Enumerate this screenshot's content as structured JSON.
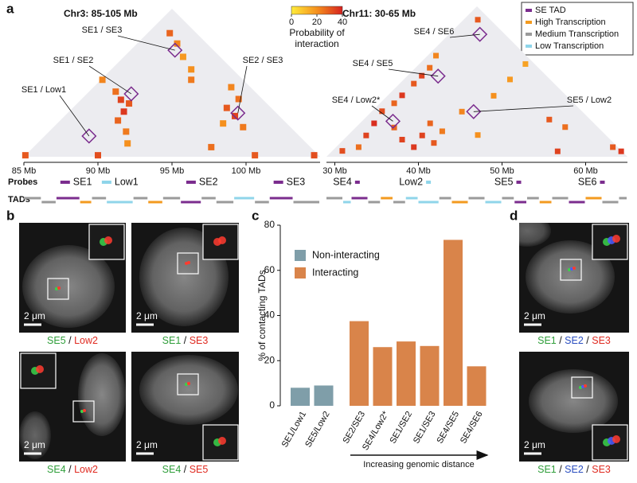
{
  "panel_labels": [
    "a",
    "b",
    "c",
    "d"
  ],
  "panel_a": {
    "colorbar": {
      "lim": [
        0,
        40
      ],
      "ticks": [
        0,
        20,
        40
      ],
      "colormap": [
        "#ffec3a",
        "#f5901e",
        "#d6221f"
      ],
      "label_lines": [
        "Probability of",
        "interaction"
      ]
    },
    "legend": [
      {
        "name": "SE TAD",
        "color": "#7b2d8e"
      },
      {
        "name": "High Transcription",
        "color": "#f39a1f"
      },
      {
        "name": "Medium Transcription",
        "color": "#9a9a9a"
      },
      {
        "name": "Low Transcription",
        "color": "#8fd5ea"
      }
    ],
    "row_labels": [
      "Probes",
      "TADs"
    ],
    "maps": [
      {
        "title": "Chr3: 85-105 Mb",
        "xlim": [
          85,
          105
        ],
        "xticks": [
          {
            "value": 85,
            "label": "85 Mb"
          },
          {
            "value": 90,
            "label": "90 Mb"
          },
          {
            "value": 95,
            "label": "95 Mb"
          },
          {
            "value": 100,
            "label": "100 Mb"
          }
        ],
        "probes": [
          {
            "name": "SE1",
            "pos": 88,
            "type": 0
          },
          {
            "name": "Low1",
            "pos": 90.8,
            "type": 3
          },
          {
            "name": "SE2",
            "pos": 96.5,
            "type": 0
          },
          {
            "name": "SE3",
            "pos": 102.4,
            "type": 0
          }
        ],
        "contacts": [
          {
            "pair": [
              0,
              3
            ],
            "label": "SE1 / SE3"
          },
          {
            "pair": [
              0,
              2
            ],
            "label": "SE1 / SE2"
          },
          {
            "pair": [
              2,
              3
            ],
            "label": "SE2 / SE3"
          },
          {
            "pair": [
              0,
              1
            ],
            "label": "SE1 / Low1"
          }
        ],
        "cells": [
          [
            85.0,
            85.2,
            30
          ],
          [
            86.5,
            103.2,
            28
          ],
          [
            87.7,
            103.0,
            22
          ],
          [
            89.0,
            102.5,
            18
          ],
          [
            90.4,
            102.2,
            20
          ],
          [
            91.1,
            101.5,
            24
          ],
          [
            85.1,
            95.5,
            22
          ],
          [
            86.8,
            95.6,
            26
          ],
          [
            87.7,
            95.4,
            34
          ],
          [
            88.5,
            95.7,
            30
          ],
          [
            88.7,
            94.8,
            36
          ],
          [
            88.9,
            93.8,
            28
          ],
          [
            90.2,
            93.6,
            24
          ],
          [
            91.1,
            92.9,
            20
          ],
          [
            89.9,
            90.1,
            32
          ],
          [
            94.3,
            103.7,
            22
          ],
          [
            95.6,
            103.4,
            26
          ],
          [
            95.4,
            102.0,
            30
          ],
          [
            96.5,
            102.0,
            34
          ],
          [
            97.8,
            101.8,
            24
          ],
          [
            96.2,
            100.7,
            20
          ],
          [
            100.5,
            100.7,
            30
          ],
          [
            104.5,
            104.7,
            32
          ],
          [
            97.0,
            98.3,
            26
          ]
        ],
        "tads": [
          [
            85,
            86.2,
            2
          ],
          [
            86.2,
            87.2,
            2
          ],
          [
            87.2,
            88.8,
            0
          ],
          [
            88.8,
            89.6,
            1
          ],
          [
            89.6,
            90.6,
            2
          ],
          [
            90.6,
            92.4,
            3
          ],
          [
            92.4,
            93.4,
            2
          ],
          [
            93.4,
            94.4,
            1
          ],
          [
            94.4,
            95.6,
            2
          ],
          [
            95.6,
            97.0,
            0
          ],
          [
            97.0,
            98.0,
            2
          ],
          [
            98.0,
            99.2,
            2
          ],
          [
            99.2,
            100.6,
            3
          ],
          [
            100.6,
            101.6,
            2
          ],
          [
            101.6,
            103.2,
            0
          ],
          [
            103.2,
            105,
            2
          ]
        ]
      },
      {
        "title": "Chr11: 30-65 Mb",
        "xlim": [
          29,
          65
        ],
        "xticks": [
          {
            "value": 30,
            "label": "30 Mb"
          },
          {
            "value": 40,
            "label": "40 Mb"
          },
          {
            "value": 50,
            "label": "50 Mb"
          },
          {
            "value": 60,
            "label": "60 Mb"
          }
        ],
        "probes": [
          {
            "name": "SE4",
            "pos": 32.7,
            "type": 0
          },
          {
            "name": "Low2",
            "pos": 41.2,
            "type": 3
          },
          {
            "name": "SE5",
            "pos": 52,
            "type": 0
          },
          {
            "name": "SE6",
            "pos": 62,
            "type": 0
          }
        ],
        "contacts": [
          {
            "pair": [
              0,
              3
            ],
            "label": "SE4 / SE6"
          },
          {
            "pair": [
              0,
              2
            ],
            "label": "SE4 / SE5"
          },
          {
            "pair": [
              0,
              1
            ],
            "label": "SE4 / Low2*"
          },
          {
            "pair": [
              1,
              2
            ],
            "label": "SE5 / Low2"
          }
        ],
        "cells": [
          [
            30.7,
            63.5,
            30
          ],
          [
            30.0,
            54.2,
            22
          ],
          [
            30.7,
            52.0,
            26
          ],
          [
            30.7,
            50.1,
            34
          ],
          [
            30.7,
            48.2,
            30
          ],
          [
            30.7,
            45.4,
            36
          ],
          [
            30.7,
            43.5,
            28
          ],
          [
            30.2,
            41.1,
            32
          ],
          [
            30.7,
            38.7,
            38
          ],
          [
            31.2,
            36.3,
            34
          ],
          [
            31.7,
            34.0,
            26
          ],
          [
            37.9,
            43.0,
            34
          ],
          [
            40.2,
            43.5,
            30
          ],
          [
            38.3,
            40.6,
            36
          ],
          [
            37.4,
            45.4,
            28
          ],
          [
            39.8,
            45.9,
            24
          ],
          [
            51.2,
            60.1,
            30
          ],
          [
            54.0,
            61.1,
            26
          ],
          [
            56.0,
            57.3,
            34
          ],
          [
            63.6,
            64.9,
            36
          ],
          [
            62.1,
            64.4,
            30
          ],
          [
            41.7,
            56.3,
            20
          ],
          [
            41.7,
            60.2,
            18
          ],
          [
            41.7,
            63.9,
            16
          ],
          [
            39.8,
            50.6,
            22
          ],
          [
            44.5,
            49.7,
            20
          ],
          [
            30.2,
            31.6,
            32
          ],
          [
            33.6,
            40.6,
            28
          ],
          [
            36.0,
            40.1,
            34
          ]
        ],
        "tads": [
          [
            29,
            31,
            2
          ],
          [
            31,
            32,
            3
          ],
          [
            32,
            34,
            0
          ],
          [
            34,
            35.5,
            2
          ],
          [
            35.5,
            37,
            1
          ],
          [
            37,
            38.5,
            2
          ],
          [
            38.5,
            40,
            3
          ],
          [
            40,
            42.5,
            3
          ],
          [
            42.5,
            44,
            2
          ],
          [
            44,
            46,
            1
          ],
          [
            46,
            48,
            2
          ],
          [
            48,
            50,
            3
          ],
          [
            50,
            51.5,
            2
          ],
          [
            51.5,
            53,
            0
          ],
          [
            53,
            54.5,
            2
          ],
          [
            54.5,
            56,
            1
          ],
          [
            56,
            58,
            2
          ],
          [
            58,
            60,
            0
          ],
          [
            60,
            62,
            1
          ],
          [
            62,
            64,
            2
          ],
          [
            64,
            65,
            2
          ]
        ]
      }
    ]
  },
  "panel_b": {
    "images": [
      {
        "scale_bar": "2 μm",
        "caption": [
          {
            "text": "SE5",
            "color": "#2f9e3a"
          },
          {
            "text": " / ",
            "color": "#111111"
          },
          {
            "text": "Low2",
            "color": "#e02a20"
          }
        ]
      },
      {
        "scale_bar": "2 μm",
        "caption": [
          {
            "text": "SE1",
            "color": "#2f9e3a"
          },
          {
            "text": " / ",
            "color": "#111111"
          },
          {
            "text": "SE3",
            "color": "#e02a20"
          }
        ]
      },
      {
        "scale_bar": "2 μm",
        "caption": [
          {
            "text": "SE4",
            "color": "#2f9e3a"
          },
          {
            "text": " / ",
            "color": "#111111"
          },
          {
            "text": "Low2",
            "color": "#e02a20"
          }
        ]
      },
      {
        "scale_bar": "2 μm",
        "caption": [
          {
            "text": "SE4",
            "color": "#2f9e3a"
          },
          {
            "text": " / ",
            "color": "#111111"
          },
          {
            "text": "SE5",
            "color": "#e02a20"
          }
        ]
      }
    ]
  },
  "chart_data": {
    "type": "bar",
    "y_label": "% of contacting TADs",
    "categories": [
      "SE1/Low1",
      "SE5/Low2",
      "SE2/SE3",
      "SE4/Low2*",
      "SE1/SE2",
      "SE1/SE3",
      "SE4/SE5",
      "SE4/SE6"
    ],
    "series": [
      {
        "name": "Non-interacting",
        "color": "#7f9ea9",
        "values": [
          8,
          9,
          null,
          null,
          null,
          null,
          null,
          null
        ]
      },
      {
        "name": "Interacting",
        "color": "#d9844a",
        "values": [
          null,
          null,
          37.5,
          26,
          28.5,
          26.5,
          73.5,
          17.5
        ]
      }
    ],
    "ylim": [
      0,
      80
    ],
    "yticks": [
      0,
      20,
      40,
      60,
      80
    ],
    "x_annotation": "Increasing genomic distance"
  },
  "panel_d": {
    "images": [
      {
        "scale_bar": "2 μm",
        "caption": [
          {
            "text": "SE1",
            "color": "#2f9e3a"
          },
          {
            "text": " / ",
            "color": "#111111"
          },
          {
            "text": "SE2",
            "color": "#2b4fc0"
          },
          {
            "text": " / ",
            "color": "#111111"
          },
          {
            "text": "SE3",
            "color": "#e02a20"
          }
        ]
      },
      {
        "scale_bar": "2 μm",
        "caption": [
          {
            "text": "SE1",
            "color": "#2f9e3a"
          },
          {
            "text": " / ",
            "color": "#111111"
          },
          {
            "text": "SE2",
            "color": "#2b4fc0"
          },
          {
            "text": " / ",
            "color": "#111111"
          },
          {
            "text": "SE3",
            "color": "#e02a20"
          }
        ]
      }
    ]
  }
}
